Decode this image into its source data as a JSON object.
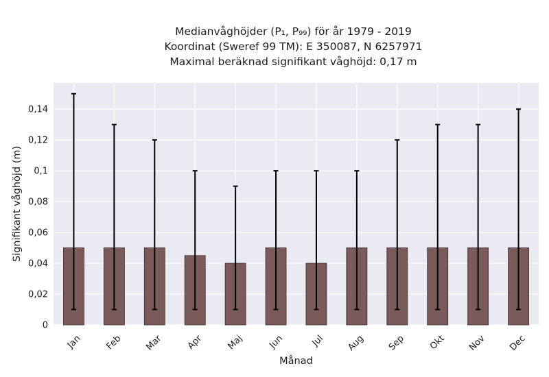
{
  "chart_data": {
    "type": "bar",
    "title_lines": [
      "Medianvåghöjder (P₁, P₉₉) för år 1979 - 2019",
      "Koordinat (Sweref 99 TM): E 350087, N 6257971",
      "Maximal beräknad signifikant våghöjd: 0,17 m"
    ],
    "xlabel": "Månad",
    "ylabel": "Signifikant våghöjd (m)",
    "categories": [
      "Jan",
      "Feb",
      "Mar",
      "Apr",
      "Maj",
      "Jun",
      "Jul",
      "Aug",
      "Sep",
      "Okt",
      "Nov",
      "Dec"
    ],
    "values": [
      0.05,
      0.05,
      0.05,
      0.045,
      0.04,
      0.05,
      0.04,
      0.05,
      0.05,
      0.05,
      0.05,
      0.05
    ],
    "err_low": [
      0.01,
      0.01,
      0.01,
      0.01,
      0.01,
      0.01,
      0.01,
      0.01,
      0.01,
      0.01,
      0.01,
      0.01
    ],
    "err_high": [
      0.15,
      0.13,
      0.12,
      0.1,
      0.09,
      0.1,
      0.1,
      0.1,
      0.12,
      0.13,
      0.13,
      0.14
    ],
    "ylim": [
      0,
      0.157
    ],
    "yticks": [
      0,
      0.02,
      0.04,
      0.06,
      0.08,
      0.1,
      0.12,
      0.14
    ],
    "ytick_labels": [
      "0",
      "0,02",
      "0,04",
      "0,06",
      "0,08",
      "0,1",
      "0,12",
      "0,14"
    ],
    "grid": true,
    "colors": {
      "bar": "#7b5a5a",
      "bar_edge": "#3a2828",
      "errorbar": "#000000",
      "plot_bg": "#eaeaf2",
      "grid": "#ffffff"
    }
  }
}
